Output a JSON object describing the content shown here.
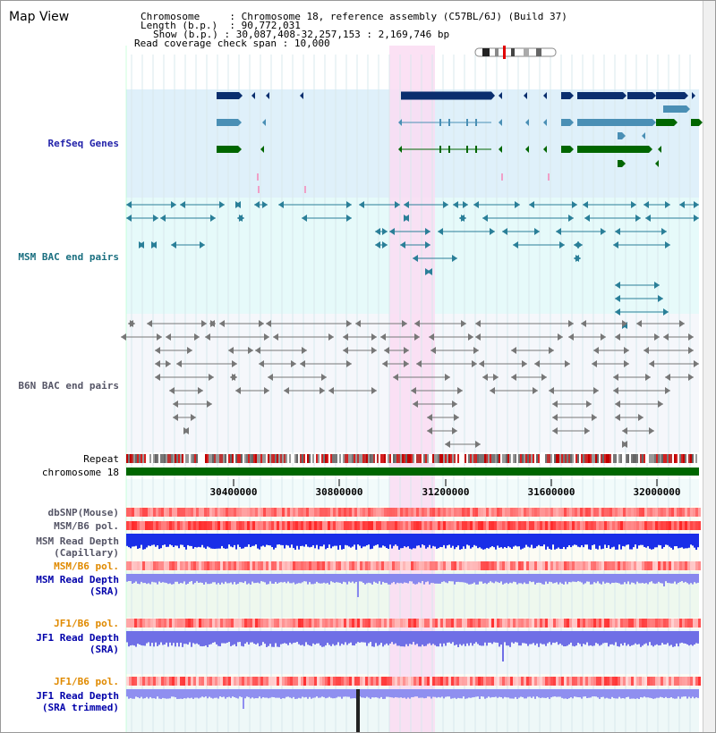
{
  "map_title": "Map View",
  "info": {
    "chromosome_label": "Chromosome",
    "chromosome_value": "Chromosome 18, reference assembly (C57BL/6J) (Build 37)",
    "length_label": "Length (b.p.)",
    "length_value": "90,772,031",
    "show_label": "Show (b.p.)",
    "show_value": "30,087,408-32,257,153 : 2,169,746 bp",
    "coverage_label": "Read coverage check span",
    "coverage_value": "10,000"
  },
  "tracks": {
    "refseq": "RefSeq Genes",
    "msm_bac": "MSM BAC end pairs",
    "b6n_bac": "B6N BAC end pairs",
    "repeat": "Repeat",
    "chromosome": "chromosome 18",
    "dbsnp": "dbSNP(Mouse)",
    "msm_b6_pol": "MSM/B6 pol.",
    "msm_read_depth_cap_1": "MSM Read Depth",
    "msm_read_depth_cap_2": "(Capillary)",
    "msm_b6_pol_2": "MSM/B6 pol.",
    "msm_read_depth_sra_1": "MSM Read Depth",
    "msm_read_depth_sra_2": "(SRA)",
    "jf1_b6_pol": "JF1/B6 pol.",
    "jf1_read_depth_sra_1": "JF1 Read Depth",
    "jf1_read_depth_sra_2": "(SRA)",
    "jf1_b6_pol_2": "JF1/B6 pol.",
    "jf1_read_depth_trim_1": "JF1 Read Depth",
    "jf1_read_depth_trim_2": "(SRA trimmed)"
  },
  "axis_ticks": [
    "30400000",
    "30800000",
    "31200000",
    "31600000",
    "32000000"
  ],
  "colors": {
    "refseq_bg": "#dff0fa",
    "msm_bg": "#e6fafa",
    "b6n_bg": "#f5f7fb",
    "highlight": "#fadcf2",
    "refseq_label": "#2222aa",
    "msm_label": "#1a6f80",
    "b6n_label": "#555566",
    "track_label_blue": "#0000aa",
    "track_label_orange": "#e08a00",
    "gene_navy": "#0a2e6e",
    "gene_steel": "#4a8fb5",
    "gene_green": "#006600",
    "chrom_green": "#006600"
  }
}
